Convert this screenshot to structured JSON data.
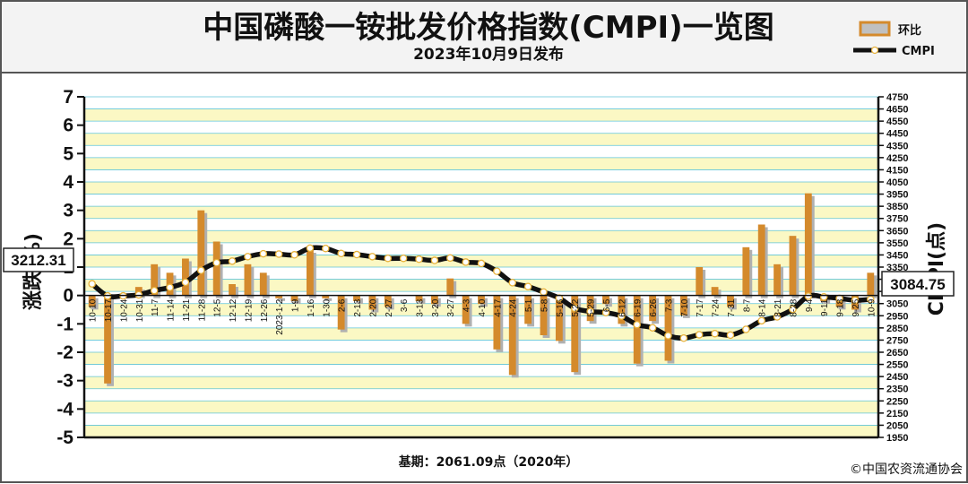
{
  "title": "中国磷酸一铵批发价格指数(CMPI)一览图",
  "subtitle": "2023年10月9日发布",
  "legend": {
    "bar_label": "环比",
    "line_label": "CMPI"
  },
  "left_axis_label": "涨跌(%)",
  "right_axis_label": "CMPI(点)",
  "callouts": {
    "start": "3212.31",
    "end": "3084.75"
  },
  "footer": {
    "base": "基期：2061.09点（2020年）",
    "credit": "©中国农资流通协会"
  },
  "colors": {
    "bar": "#d48a2c",
    "bar_shadow": "#b0b0b0",
    "stripe_a": "#fbf8c4",
    "stripe_b": "#ffffff",
    "grid": "#5fc4d8",
    "line": "#111111",
    "marker": "#ffffff",
    "marker_dot": "#e8b23a"
  },
  "chart_data": {
    "type": "bar+line",
    "categories": [
      "10-10",
      "10-17",
      "10-24",
      "10-31",
      "11-7",
      "11-14",
      "11-21",
      "11-28",
      "12-5",
      "12-12",
      "12-19",
      "12-26",
      "2023-1-2",
      "1-9",
      "1-16",
      "1-30",
      "2-6",
      "2-13",
      "2-20",
      "2-27",
      "3-6",
      "3-13",
      "3-20",
      "3-27",
      "4-3",
      "4-10",
      "4-17",
      "4-24",
      "5-1",
      "5-8",
      "5-16",
      "5-22",
      "5-29",
      "6-5",
      "6-12",
      "6-19",
      "6-26",
      "7-3",
      "7-10",
      "7-17",
      "7-24",
      "7-31",
      "8-7",
      "8-14",
      "8-21",
      "8-28",
      "9-4",
      "9-11",
      "9-18",
      "9-25",
      "10-9"
    ],
    "series": [
      {
        "name": "环比",
        "axis": "left",
        "values": [
          -0.4,
          -3.1,
          0.0,
          0.3,
          1.1,
          0.8,
          1.3,
          3.0,
          1.9,
          0.4,
          1.1,
          0.8,
          -0.1,
          -0.2,
          1.6,
          -0.1,
          -1.2,
          -0.2,
          -0.5,
          -0.4,
          0.0,
          -0.2,
          -0.3,
          0.6,
          -1.0,
          -0.3,
          -1.9,
          -2.8,
          -1.0,
          -1.4,
          -1.6,
          -2.7,
          -0.9,
          -0.3,
          -1.0,
          -2.4,
          -0.9,
          -2.3,
          -0.7,
          1.0,
          0.3,
          -0.4,
          1.7,
          2.5,
          1.1,
          2.1,
          3.6,
          -0.2,
          -0.4,
          -0.5,
          0.8
        ]
      },
      {
        "name": "CMPI",
        "axis": "right",
        "values": [
          3212.31,
          3113,
          3113,
          3122,
          3157,
          3183,
          3225,
          3323,
          3386,
          3399,
          3436,
          3460,
          3457,
          3451,
          3506,
          3503,
          3462,
          3453,
          3436,
          3422,
          3422,
          3415,
          3405,
          3425,
          3391,
          3380,
          3316,
          3222,
          3190,
          3145,
          3095,
          3012,
          2985,
          2976,
          2947,
          2877,
          2851,
          2786,
          2766,
          2794,
          2803,
          2791,
          2838,
          2909,
          2941,
          3003,
          3111,
          3105,
          3093,
          3077,
          3084.75
        ]
      }
    ],
    "left_axis": {
      "ylim": [
        -5,
        7
      ],
      "ticks": [
        -5,
        -4,
        -3,
        -2,
        -1,
        0,
        1,
        2,
        3,
        4,
        5,
        6,
        7
      ]
    },
    "right_axis": {
      "ylim": [
        1950,
        4750
      ],
      "ticks": [
        1950,
        2050,
        2150,
        2250,
        2350,
        2450,
        2550,
        2650,
        2750,
        2850,
        2950,
        3050,
        3150,
        3250,
        3350,
        3450,
        3550,
        3650,
        3750,
        3850,
        3950,
        4050,
        4150,
        4250,
        4350,
        4450,
        4550,
        4650,
        4750
      ]
    },
    "grid": true,
    "legend_position": "top-right"
  }
}
